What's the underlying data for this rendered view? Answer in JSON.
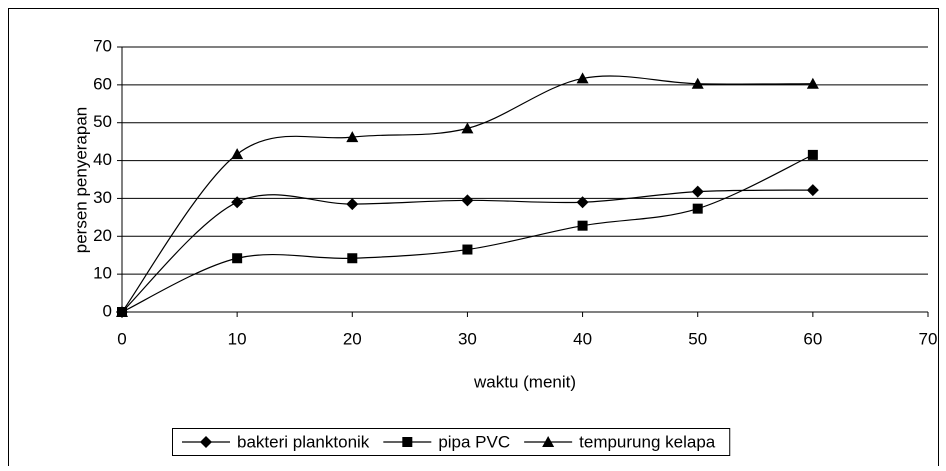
{
  "chart_data": {
    "type": "scatter",
    "x_label": "waktu (menit)",
    "y_label": "persen penyerapan",
    "x": [
      0,
      10,
      20,
      30,
      40,
      50,
      60
    ],
    "series": [
      {
        "name": "bakteri planktonik",
        "color": "#000000",
        "marker": "diamond",
        "values": [
          0,
          29,
          28.5,
          29.5,
          29,
          31.8,
          32.2
        ]
      },
      {
        "name": "pipa PVC",
        "color": "#000000",
        "marker": "square",
        "values": [
          0,
          14.2,
          14.2,
          16.5,
          22.8,
          27.3,
          41.5
        ]
      },
      {
        "name": "tempurung kelapa",
        "color": "#000000",
        "marker": "triangle",
        "values": [
          0,
          41.7,
          46.2,
          48.5,
          61.7,
          60.3,
          60.3
        ]
      }
    ],
    "xlim": [
      0,
      70
    ],
    "xticks": [
      0,
      10,
      20,
      30,
      40,
      50,
      60,
      70
    ],
    "ylim": [
      0,
      70
    ],
    "yticks": [
      0,
      10,
      20,
      30,
      40,
      50,
      60,
      70
    ],
    "grid": true,
    "smooth": true,
    "legend": "bottom"
  }
}
